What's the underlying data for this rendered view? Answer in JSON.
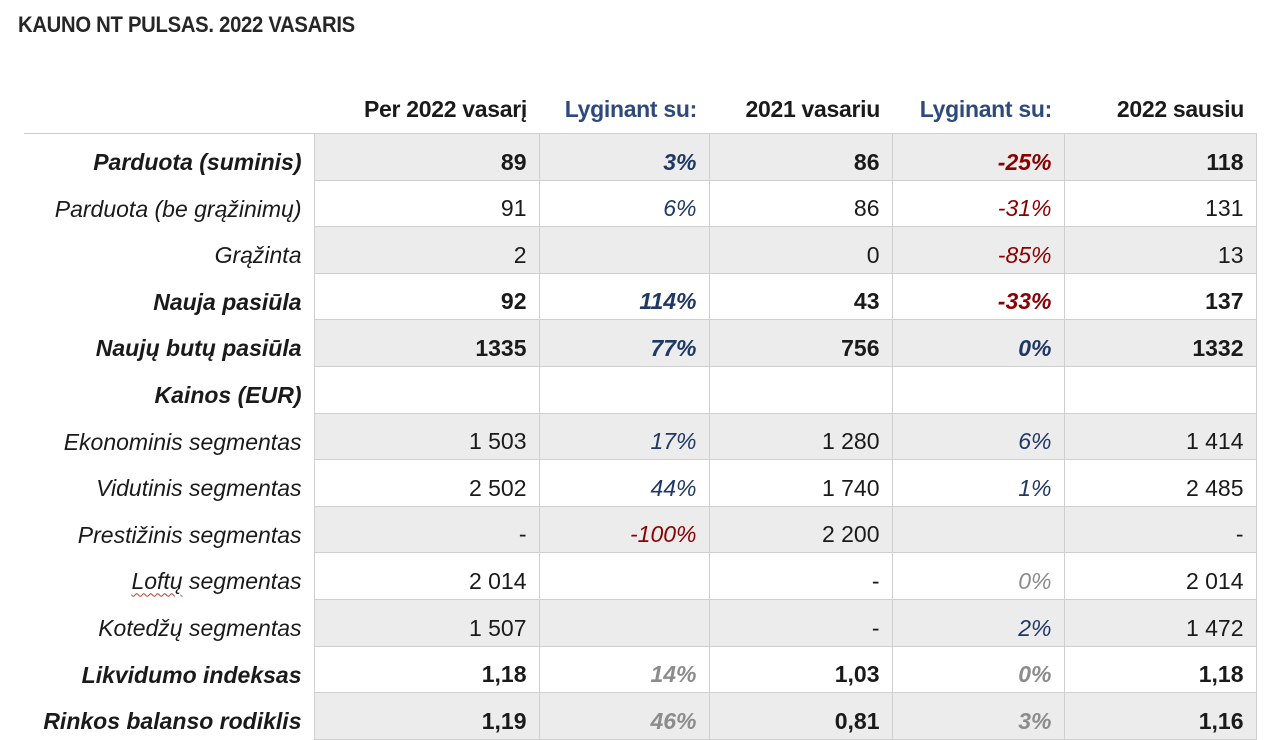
{
  "title": "KAUNO NT PULSAS. 2022 VASARIS",
  "headers": [
    "",
    "Per 2022 vasarį",
    "Lyginant su:",
    "2021 vasariu",
    "Lyginant su:",
    "2022 sausiu"
  ],
  "rows": [
    {
      "label": "Parduota (suminis)",
      "bold": true,
      "shade": true,
      "v1": "89",
      "c1": "3%",
      "c1color": "blue",
      "v2": "86",
      "c2": "-25%",
      "c2color": "red",
      "v3": "118"
    },
    {
      "label": "Parduota (be grąžinimų)",
      "bold": false,
      "shade": false,
      "v1": "91",
      "c1": "6%",
      "c1color": "blue",
      "v2": "86",
      "c2": "-31%",
      "c2color": "red",
      "v3": "131"
    },
    {
      "label": "Grąžinta",
      "bold": false,
      "shade": true,
      "v1": "2",
      "c1": "",
      "c1color": "blue",
      "v2": "0",
      "c2": "-85%",
      "c2color": "red",
      "v3": "13"
    },
    {
      "label": "Nauja pasiūla",
      "bold": true,
      "shade": false,
      "v1": "92",
      "c1": "114%",
      "c1color": "blue",
      "v2": "43",
      "c2": "-33%",
      "c2color": "red",
      "v3": "137"
    },
    {
      "label": "Naujų butų pasiūla",
      "bold": true,
      "shade": true,
      "v1": "1335",
      "c1": "77%",
      "c1color": "blue",
      "v2": "756",
      "c2": "0%",
      "c2color": "blue",
      "v3": "1332"
    },
    {
      "label": "Kainos (EUR)",
      "bold": true,
      "shade": false,
      "v1": "",
      "c1": "",
      "c1color": "blue",
      "v2": "",
      "c2": "",
      "c2color": "blue",
      "v3": ""
    },
    {
      "label": "Ekonominis segmentas",
      "bold": false,
      "shade": true,
      "v1": "1 503",
      "c1": "17%",
      "c1color": "blue",
      "v2": "1 280",
      "c2": "6%",
      "c2color": "blue",
      "v3": "1 414"
    },
    {
      "label": "Vidutinis segmentas",
      "bold": false,
      "shade": false,
      "v1": "2 502",
      "c1": "44%",
      "c1color": "blue",
      "v2": "1 740",
      "c2": "1%",
      "c2color": "blue",
      "v3": "2 485"
    },
    {
      "label": "Prestižinis segmentas",
      "bold": false,
      "shade": true,
      "v1": "-",
      "c1": "-100%",
      "c1color": "red",
      "v2": "2 200",
      "c2": "",
      "c2color": "blue",
      "v3": "-"
    },
    {
      "label": "Loftų segmentas",
      "bold": false,
      "shade": false,
      "v1": "2 014",
      "c1": "",
      "c1color": "blue",
      "v2": "-",
      "c2": "0%",
      "c2color": "gray",
      "v3": "2 014"
    },
    {
      "label": "Kotedžų segmentas",
      "bold": false,
      "shade": true,
      "v1": "1 507",
      "c1": "",
      "c1color": "blue",
      "v2": "-",
      "c2": "2%",
      "c2color": "blue",
      "v3": "1 472"
    },
    {
      "label": "Likvidumo indeksas",
      "bold": true,
      "shade": false,
      "v1": "1,18",
      "c1": "14%",
      "c1color": "gray",
      "v2": "1,03",
      "c2": "0%",
      "c2color": "gray",
      "v3": "1,18"
    },
    {
      "label": "Rinkos balanso rodiklis",
      "bold": true,
      "shade": true,
      "v1": "1,19",
      "c1": "46%",
      "c1color": "gray",
      "v2": "0,81",
      "c2": "3%",
      "c2color": "gray",
      "v3": "1,16"
    }
  ]
}
